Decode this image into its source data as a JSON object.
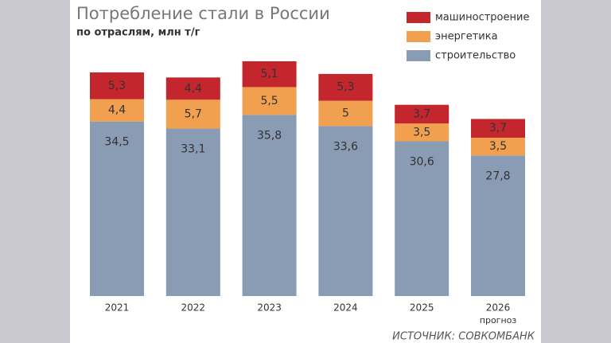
{
  "chart_data": {
    "type": "stacked-bar",
    "title": "Потребление стали в России",
    "subtitle": "по отраслям, млн т/г",
    "categories": [
      "2021",
      "2022",
      "2023",
      "2024",
      "2025",
      "2026"
    ],
    "forecast_note": "прогноз",
    "series": [
      {
        "name": "строительство",
        "color": "#8a9bb4",
        "values": [
          34.5,
          33.1,
          35.8,
          33.6,
          30.6,
          27.8
        ],
        "value_labels": [
          "34,5",
          "33,1",
          "35,8",
          "33,6",
          "30,6",
          "27,8"
        ]
      },
      {
        "name": "энергетика",
        "color": "#f1a04f",
        "values": [
          4.4,
          5.7,
          5.5,
          5,
          3.5,
          3.5
        ],
        "value_labels": [
          "4,4",
          "5,7",
          "5,5",
          "5",
          "3,5",
          "3,5"
        ]
      },
      {
        "name": "машиностроение",
        "color": "#c3262d",
        "values": [
          5.3,
          4.4,
          5.1,
          5.3,
          3.7,
          3.7
        ],
        "value_labels": [
          "5,3",
          "4,4",
          "5,1",
          "5,3",
          "3,7",
          "3,7"
        ]
      }
    ],
    "legend": "top-right",
    "source": "ИСТОЧНИК: СОВКОМБАНК"
  }
}
